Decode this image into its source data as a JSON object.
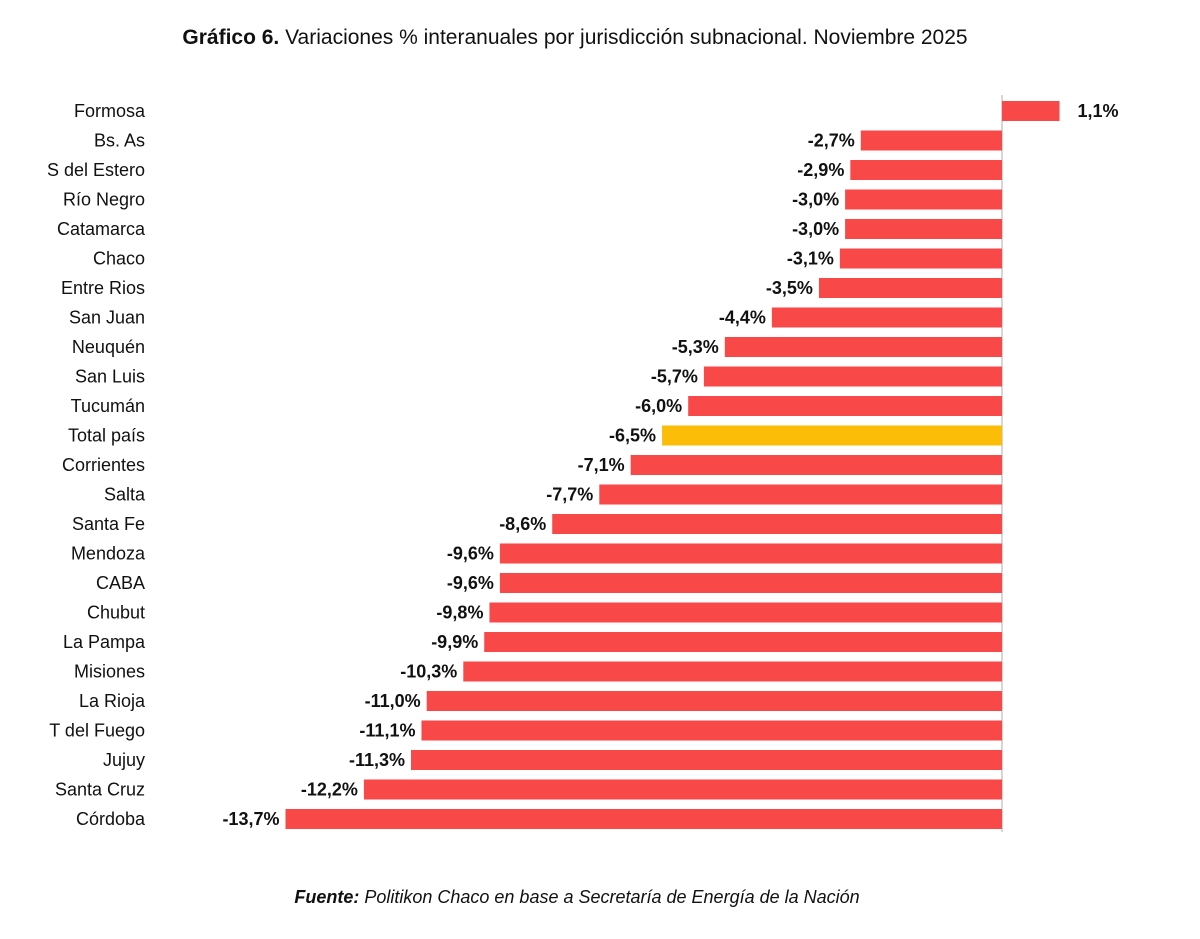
{
  "chart_data": {
    "type": "bar",
    "orientation": "horizontal",
    "title_lead": "Gráfico 6.",
    "title": "Variaciones % interanuales por jurisdicción subnacional. Noviembre 2025",
    "source_lead": "Fuente:",
    "source": "Politikon Chaco en base a Secretaría de Energía de la Nación",
    "categories": [
      "Formosa",
      "Bs. As",
      "S del Estero",
      "Río Negro",
      "Catamarca",
      "Chaco",
      "Entre Rios",
      "San Juan",
      "Neuquén",
      "San Luis",
      "Tucumán",
      "Total país",
      "Corrientes",
      "Salta",
      "Santa Fe",
      "Mendoza",
      "CABA",
      "Chubut",
      "La Pampa",
      "Misiones",
      "La Rioja",
      "T del Fuego",
      "Jujuy",
      "Santa Cruz",
      "Córdoba"
    ],
    "values": [
      1.1,
      -2.7,
      -2.9,
      -3.0,
      -3.0,
      -3.1,
      -3.5,
      -4.4,
      -5.3,
      -5.7,
      -6.0,
      -6.5,
      -7.1,
      -7.7,
      -8.6,
      -9.6,
      -9.6,
      -9.8,
      -9.9,
      -10.3,
      -11.0,
      -11.1,
      -11.3,
      -12.2,
      -13.7
    ],
    "value_labels": [
      "1,1%",
      "-2,7%",
      "-2,9%",
      "-3,0%",
      "-3,0%",
      "-3,1%",
      "-3,5%",
      "-4,4%",
      "-5,3%",
      "-5,7%",
      "-6,0%",
      "-6,5%",
      "-7,1%",
      "-7,7%",
      "-8,6%",
      "-9,6%",
      "-9,6%",
      "-9,8%",
      "-9,9%",
      "-10,3%",
      "-11,0%",
      "-11,1%",
      "-11,3%",
      "-12,2%",
      "-13,7%"
    ],
    "colors": [
      "#f84848",
      "#f84848",
      "#f84848",
      "#f84848",
      "#f84848",
      "#f84848",
      "#f84848",
      "#f84848",
      "#f84848",
      "#f84848",
      "#f84848",
      "#fbbd07",
      "#f84848",
      "#f84848",
      "#f84848",
      "#f84848",
      "#f84848",
      "#f84848",
      "#f84848",
      "#f84848",
      "#f84848",
      "#f84848",
      "#f84848",
      "#f84848",
      "#f84848"
    ]
  }
}
